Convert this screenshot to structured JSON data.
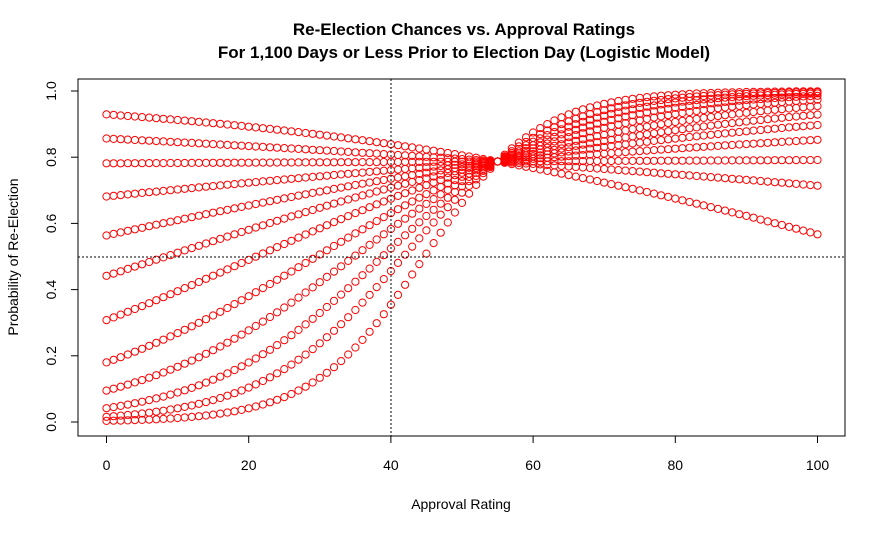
{
  "chart_data": {
    "type": "scatter",
    "title": "Re-Election Chances vs. Approval Ratings",
    "subtitle": "For 1,100 Days or Less Prior to Election Day (Logistic Model)",
    "xlabel": "Approval Rating",
    "ylabel": "Probability of Re-Election",
    "xlim": [
      0,
      100
    ],
    "ylim": [
      0,
      1
    ],
    "xticks": [
      "0",
      "20",
      "40",
      "60",
      "80",
      "100"
    ],
    "yticks": [
      "0.0",
      "0.2",
      "0.4",
      "0.6",
      "0.8",
      "1.0"
    ],
    "reference_lines": {
      "x": 40,
      "y": 0.5
    },
    "marker": "open-circle",
    "color": "#ff0000",
    "grid": false,
    "model": {
      "form": "logistic",
      "pivot_approval": 55,
      "pivot_probability": 0.787,
      "approval_values": {
        "from": 0,
        "to": 100,
        "step": 1
      },
      "curves": [
        {
          "p_at_0": 0.93,
          "p_at_100": 0.57
        },
        {
          "p_at_0": 0.86,
          "p_at_100": 0.72
        },
        {
          "p_at_0": 0.78,
          "p_at_100": 0.79
        },
        {
          "p_at_0": 0.66,
          "p_at_100": 0.84
        },
        {
          "p_at_0": 0.52,
          "p_at_100": 0.88
        },
        {
          "p_at_0": 0.38,
          "p_at_100": 0.91
        },
        {
          "p_at_0": 0.25,
          "p_at_100": 0.94
        },
        {
          "p_at_0": 0.14,
          "p_at_100": 0.965
        },
        {
          "p_at_0": 0.07,
          "p_at_100": 0.98
        },
        {
          "p_at_0": 0.03,
          "p_at_100": 0.99
        },
        {
          "p_at_0": 0.01,
          "p_at_100": 0.995
        },
        {
          "p_at_0": 0.003,
          "p_at_100": 0.999
        }
      ]
    }
  }
}
